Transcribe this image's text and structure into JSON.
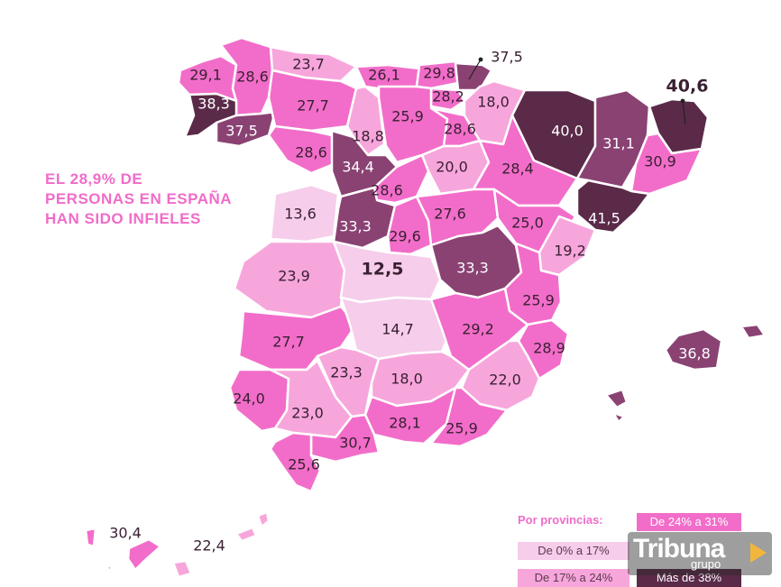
{
  "headline": [
    "EL 28,9% DE",
    "PERSONAS EN ESPAÑA",
    "HAN SIDO INFIELES"
  ],
  "legend": {
    "title": "Por provincias:",
    "items": [
      {
        "label": "De 24% a 31%",
        "color": "#f26dc9",
        "text_color": "#ffffff"
      },
      {
        "label": "De 0% a 17%",
        "color": "#f6cdea",
        "text_color": "#5b3a4e"
      },
      {
        "label": "De 17% a 24%",
        "color": "#f7a6dc",
        "text_color": "#5b3a4e"
      },
      {
        "label": "Más de 38%",
        "color": "#5a2a48",
        "text_color": "#ffffff"
      }
    ]
  },
  "colors": {
    "v0_17": "#f6cdea",
    "v17_24": "#f7a6dc",
    "v24_31": "#f26dc9",
    "v31_38": "#8a4273",
    "v38": "#5a2a48"
  },
  "logo": {
    "word": "Tribuna",
    "sub": "grupo"
  },
  "chart_data": {
    "type": "choropleth",
    "unit": "%",
    "national": "28,9",
    "values": [
      {
        "id": "a-coruna",
        "value": "29,1",
        "cls": "v24_31"
      },
      {
        "id": "lugo",
        "value": "28,6",
        "cls": "v24_31"
      },
      {
        "id": "asturias",
        "value": "23,7",
        "cls": "v17_24"
      },
      {
        "id": "cantabria",
        "value": "26,1",
        "cls": "v24_31"
      },
      {
        "id": "bizkaia",
        "value": "29,8",
        "cls": "v24_31"
      },
      {
        "id": "gipuzkoa",
        "value": "37,5",
        "cls": "v31_38"
      },
      {
        "id": "araba",
        "value": "28,2",
        "cls": "v24_31"
      },
      {
        "id": "navarra",
        "value": "18,0",
        "cls": "v17_24"
      },
      {
        "id": "pontevedra",
        "value": "38,3",
        "cls": "v38"
      },
      {
        "id": "ourense",
        "value": "37,5",
        "cls": "v31_38"
      },
      {
        "id": "leon",
        "value": "27,7",
        "cls": "v24_31"
      },
      {
        "id": "palencia",
        "value": "18,8",
        "cls": "v17_24"
      },
      {
        "id": "burgos",
        "value": "25,9",
        "cls": "v24_31"
      },
      {
        "id": "la-rioja",
        "value": "28,6",
        "cls": "v24_31"
      },
      {
        "id": "huesca",
        "value": "40,0",
        "cls": "v38"
      },
      {
        "id": "lleida",
        "value": "31,1",
        "cls": "v31_38"
      },
      {
        "id": "girona",
        "value": "40,6",
        "cls": "v38"
      },
      {
        "id": "zamora",
        "value": "28,6",
        "cls": "v24_31"
      },
      {
        "id": "valladolid",
        "value": "34,4",
        "cls": "v31_38"
      },
      {
        "id": "soria",
        "value": "20,0",
        "cls": "v17_24"
      },
      {
        "id": "zaragoza",
        "value": "28,4",
        "cls": "v24_31"
      },
      {
        "id": "barcelona",
        "value": "30,9",
        "cls": "v24_31"
      },
      {
        "id": "salamanca",
        "value": "13,6",
        "cls": "v0_17"
      },
      {
        "id": "segovia",
        "value": "28,6",
        "cls": "v24_31"
      },
      {
        "id": "avila",
        "value": "33,3",
        "cls": "v31_38"
      },
      {
        "id": "guadalajara",
        "value": "27,6",
        "cls": "v24_31"
      },
      {
        "id": "teruel",
        "value": "25,0",
        "cls": "v24_31"
      },
      {
        "id": "tarragona",
        "value": "41,5",
        "cls": "v38"
      },
      {
        "id": "madrid",
        "value": "29,6",
        "cls": "v24_31"
      },
      {
        "id": "castellon",
        "value": "19,2",
        "cls": "v17_24"
      },
      {
        "id": "caceres",
        "value": "23,9",
        "cls": "v17_24"
      },
      {
        "id": "toledo",
        "value": "12,5",
        "cls": "v0_17",
        "big": true
      },
      {
        "id": "cuenca",
        "value": "33,3",
        "cls": "v31_38"
      },
      {
        "id": "valencia",
        "value": "25,9",
        "cls": "v24_31"
      },
      {
        "id": "badajoz",
        "value": "27,7",
        "cls": "v24_31"
      },
      {
        "id": "ciudad-real",
        "value": "14,7",
        "cls": "v0_17"
      },
      {
        "id": "albacete",
        "value": "29,2",
        "cls": "v24_31"
      },
      {
        "id": "alicante",
        "value": "28,9",
        "cls": "v24_31"
      },
      {
        "id": "baleares",
        "value": "36,8",
        "cls": "v31_38"
      },
      {
        "id": "huelva",
        "value": "24,0",
        "cls": "v24_31"
      },
      {
        "id": "sevilla",
        "value": "23,0",
        "cls": "v17_24"
      },
      {
        "id": "cordoba",
        "value": "23,3",
        "cls": "v17_24"
      },
      {
        "id": "jaen",
        "value": "18,0",
        "cls": "v17_24"
      },
      {
        "id": "murcia",
        "value": "22,0",
        "cls": "v17_24"
      },
      {
        "id": "granada",
        "value": "28,1",
        "cls": "v24_31"
      },
      {
        "id": "almeria",
        "value": "25,9",
        "cls": "v24_31"
      },
      {
        "id": "malaga",
        "value": "30,7",
        "cls": "v24_31"
      },
      {
        "id": "cadiz",
        "value": "25,6",
        "cls": "v24_31"
      },
      {
        "id": "santa-cruz-de-tenerife",
        "value": "30,4",
        "cls": "v24_31"
      },
      {
        "id": "las-palmas",
        "value": "22,4",
        "cls": "v17_24"
      }
    ]
  }
}
